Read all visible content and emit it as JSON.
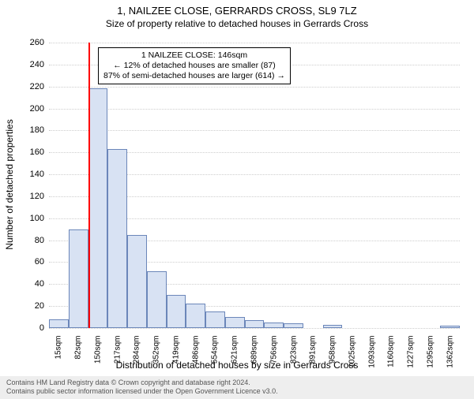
{
  "titles": {
    "main": "1, NAILZEE CLOSE, GERRARDS CROSS, SL9 7LZ",
    "sub": "Size of property relative to detached houses in Gerrards Cross"
  },
  "chart": {
    "type": "histogram",
    "ylabel": "Number of detached properties",
    "xlabel": "Distribution of detached houses by size in Gerrards Cross",
    "ylim": [
      0,
      260
    ],
    "ytick_step": 20,
    "background_color": "#ffffff",
    "grid_color": "#cdcdcd",
    "bar_fill": "#d8e2f3",
    "bar_border": "#6b86b9",
    "marker_color": "#ff0000",
    "label_fontsize": 12,
    "tick_fontsize": 11,
    "title_fontsize": 13,
    "categories": [
      "15sqm",
      "82sqm",
      "150sqm",
      "217sqm",
      "284sqm",
      "352sqm",
      "419sqm",
      "486sqm",
      "554sqm",
      "621sqm",
      "689sqm",
      "756sqm",
      "823sqm",
      "891sqm",
      "958sqm",
      "1025sqm",
      "1093sqm",
      "1160sqm",
      "1227sqm",
      "1295sqm",
      "1362sqm"
    ],
    "values": [
      8,
      90,
      218,
      163,
      85,
      52,
      30,
      22,
      15,
      10,
      7,
      5,
      4,
      0,
      3,
      0,
      0,
      0,
      0,
      0,
      2
    ],
    "marker_index": 2,
    "bar_width_ratio": 1.0
  },
  "annotation": {
    "line1": "1 NAILZEE CLOSE: 146sqm",
    "line2": "← 12% of detached houses are smaller (87)",
    "line3": "87% of semi-detached houses are larger (614) →"
  },
  "footer": {
    "line1": "Contains HM Land Registry data © Crown copyright and database right 2024.",
    "line2": "Contains public sector information licensed under the Open Government Licence v3.0."
  },
  "colors": {
    "footer_bg": "#eeeeee",
    "footer_text": "#555555",
    "text": "#000000"
  }
}
